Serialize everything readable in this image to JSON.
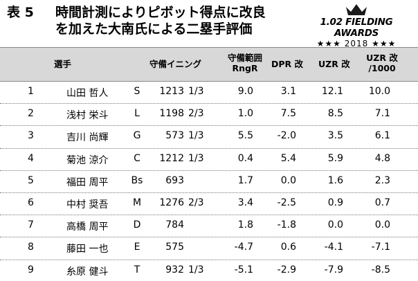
{
  "title": {
    "label": "表 5",
    "line1": "時間計測によりピボット得点に改良",
    "line2": "を加えた大南氏による二塁手評価"
  },
  "logo": {
    "name": "1.02 FIELDING AWARDS",
    "year": "★★★ 2018 ★★★"
  },
  "table": {
    "headers": {
      "player": "選手",
      "innings": "守備イニング",
      "rngr_1": "守備範囲",
      "rngr_2": "RngR",
      "dpr": "DPR 改",
      "uzr": "UZR 改",
      "uzr1000_1": "UZR 改",
      "uzr1000_2": "/1000"
    },
    "rows": [
      {
        "rank": "1",
        "name": "山田 哲人",
        "team": "S",
        "inn_whole": "1213",
        "inn_frac": "1/3",
        "rngr": "9.0",
        "dpr": "3.1",
        "uzr": "12.1",
        "uzr1000": "10.0"
      },
      {
        "rank": "2",
        "name": "浅村 栄斗",
        "team": "L",
        "inn_whole": "1198",
        "inn_frac": "2/3",
        "rngr": "1.0",
        "dpr": "7.5",
        "uzr": "8.5",
        "uzr1000": "7.1"
      },
      {
        "rank": "3",
        "name": "吉川 尚輝",
        "team": "G",
        "inn_whole": "573",
        "inn_frac": "1/3",
        "rngr": "5.5",
        "dpr": "-2.0",
        "uzr": "3.5",
        "uzr1000": "6.1"
      },
      {
        "rank": "4",
        "name": "菊池 涼介",
        "team": "C",
        "inn_whole": "1212",
        "inn_frac": "1/3",
        "rngr": "0.4",
        "dpr": "5.4",
        "uzr": "5.9",
        "uzr1000": "4.8"
      },
      {
        "rank": "5",
        "name": "福田 周平",
        "team": "Bs",
        "inn_whole": "693",
        "inn_frac": "",
        "rngr": "1.7",
        "dpr": "0.0",
        "uzr": "1.6",
        "uzr1000": "2.3"
      },
      {
        "rank": "6",
        "name": "中村 奨吾",
        "team": "M",
        "inn_whole": "1276",
        "inn_frac": "2/3",
        "rngr": "3.4",
        "dpr": "-2.5",
        "uzr": "0.9",
        "uzr1000": "0.7"
      },
      {
        "rank": "7",
        "name": "高橋 周平",
        "team": "D",
        "inn_whole": "784",
        "inn_frac": "",
        "rngr": "1.8",
        "dpr": "-1.8",
        "uzr": "0.0",
        "uzr1000": "0.0"
      },
      {
        "rank": "8",
        "name": "藤田 一也",
        "team": "E",
        "inn_whole": "575",
        "inn_frac": "",
        "rngr": "-4.7",
        "dpr": "0.6",
        "uzr": "-4.1",
        "uzr1000": "-7.1"
      },
      {
        "rank": "9",
        "name": "糸原 健斗",
        "team": "T",
        "inn_whole": "932",
        "inn_frac": "1/3",
        "rngr": "-5.1",
        "dpr": "-2.9",
        "uzr": "-7.9",
        "uzr1000": "-8.5"
      }
    ]
  }
}
